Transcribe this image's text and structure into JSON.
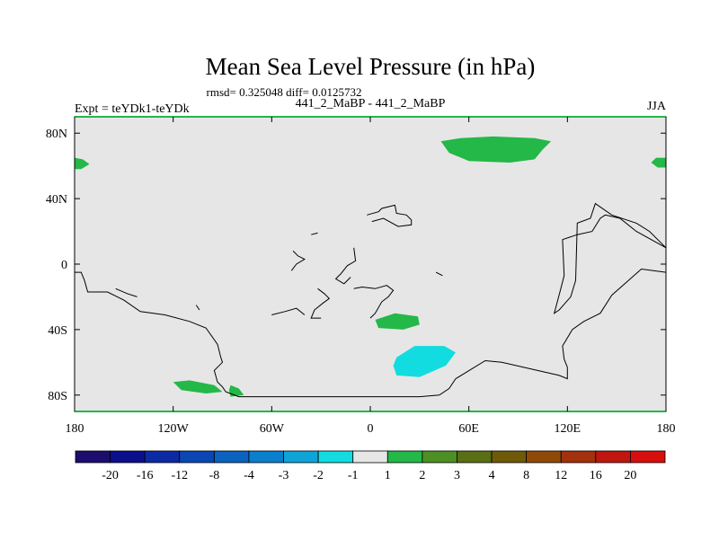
{
  "chart_data": {
    "type": "heatmap",
    "title": "Mean Sea Level Pressure (in hPa)",
    "stats": "rmsd= 0.325048 diff= 0.0125732",
    "left_label": "Expt = teYDk1-teYDk",
    "center_label": "441_2_MaBP - 441_2_MaBP",
    "right_label": "JJA",
    "x_ticks": [
      {
        "value": -180,
        "label": "180"
      },
      {
        "value": -120,
        "label": "120W"
      },
      {
        "value": -60,
        "label": "60W"
      },
      {
        "value": 0,
        "label": "0"
      },
      {
        "value": 60,
        "label": "60E"
      },
      {
        "value": 120,
        "label": "120E"
      },
      {
        "value": 180,
        "label": "180"
      }
    ],
    "y_ticks": [
      {
        "value": 80,
        "label": "80N"
      },
      {
        "value": 40,
        "label": "40N"
      },
      {
        "value": 0,
        "label": "0"
      },
      {
        "value": -40,
        "label": "40S"
      },
      {
        "value": -80,
        "label": "80S"
      }
    ],
    "xlim": [
      -180,
      180
    ],
    "ylim": [
      -90,
      90
    ],
    "colorbar": {
      "colors": [
        "#1c0d6e",
        "#0c0f8c",
        "#0c2aa3",
        "#0a47b5",
        "#0b62bf",
        "#0a7fcc",
        "#0ea4d8",
        "#12dce0",
        "#e6e6e6",
        "#23b848",
        "#4d8f25",
        "#5a6e16",
        "#6e5a08",
        "#8f4a0a",
        "#a3310c",
        "#bf1610",
        "#d80e0e"
      ],
      "labels": [
        "-20",
        "-16",
        "-12",
        "-8",
        "-4",
        "-3",
        "-2",
        "-1",
        "1",
        "2",
        "3",
        "4",
        "8",
        "12",
        "16",
        "20"
      ]
    },
    "anomalies": [
      {
        "name": "arctic-positive",
        "value_range": "1 to 2",
        "color": "#23b848",
        "lonlat": [
          [
            43,
            75
          ],
          [
            55,
            77
          ],
          [
            75,
            78
          ],
          [
            100,
            77
          ],
          [
            110,
            75
          ],
          [
            105,
            70
          ],
          [
            100,
            64
          ],
          [
            85,
            62
          ],
          [
            60,
            63
          ],
          [
            48,
            68
          ]
        ]
      },
      {
        "name": "date-line-positive-west",
        "value_range": "1 to 2",
        "color": "#23b848",
        "lonlat": [
          [
            -180,
            65
          ],
          [
            -175,
            64
          ],
          [
            -171,
            61
          ],
          [
            -176,
            58
          ],
          [
            -180,
            58
          ]
        ]
      },
      {
        "name": "date-line-positive-east",
        "value_range": "1 to 2",
        "color": "#23b848",
        "lonlat": [
          [
            180,
            65
          ],
          [
            174,
            65
          ],
          [
            171,
            62
          ],
          [
            175,
            59
          ],
          [
            180,
            59
          ]
        ]
      },
      {
        "name": "south-atlantic-positive",
        "value_range": "1 to 2",
        "color": "#23b848",
        "lonlat": [
          [
            3,
            -34
          ],
          [
            15,
            -30
          ],
          [
            29,
            -32
          ],
          [
            30,
            -37
          ],
          [
            20,
            -40
          ],
          [
            5,
            -39
          ]
        ]
      },
      {
        "name": "antarctic-positive-a",
        "value_range": "1 to 2",
        "color": "#23b848",
        "lonlat": [
          [
            -120,
            -72
          ],
          [
            -110,
            -71
          ],
          [
            -95,
            -74
          ],
          [
            -90,
            -78
          ],
          [
            -100,
            -79
          ],
          [
            -115,
            -77
          ]
        ]
      },
      {
        "name": "antarctic-positive-b",
        "value_range": "1 to 2",
        "color": "#23b848",
        "lonlat": [
          [
            -85,
            -74
          ],
          [
            -80,
            -76
          ],
          [
            -77,
            -80
          ],
          [
            -85,
            -81
          ],
          [
            -86,
            -77
          ]
        ]
      },
      {
        "name": "south-indian-negative",
        "value_range": "-2 to -1",
        "color": "#12dce0",
        "lonlat": [
          [
            16,
            -57
          ],
          [
            27,
            -50
          ],
          [
            45,
            -50
          ],
          [
            52,
            -54
          ],
          [
            46,
            -62
          ],
          [
            30,
            -69
          ],
          [
            16,
            -68
          ],
          [
            14,
            -62
          ]
        ]
      }
    ],
    "coastlines": [
      [
        [
          -180,
          -5
        ],
        [
          -176,
          -5
        ],
        [
          -174,
          -10
        ],
        [
          -172,
          -17
        ],
        [
          -160,
          -17
        ],
        [
          -150,
          -22
        ],
        [
          -140,
          -29
        ],
        [
          -125,
          -31
        ],
        [
          -110,
          -35
        ],
        [
          -100,
          -39
        ],
        [
          -93,
          -49
        ],
        [
          -91,
          -57
        ],
        [
          -90,
          -60
        ],
        [
          -95,
          -65
        ],
        [
          -93,
          -72
        ],
        [
          -90,
          -75
        ],
        [
          -88,
          -78
        ],
        [
          -80,
          -81
        ],
        [
          30,
          -81
        ],
        [
          42,
          -80
        ],
        [
          48,
          -76
        ],
        [
          52,
          -70
        ],
        [
          70,
          -59
        ],
        [
          80,
          -60
        ],
        [
          115,
          -68
        ],
        [
          120,
          -70
        ],
        [
          120,
          -63
        ],
        [
          118,
          -58
        ],
        [
          117,
          -50
        ],
        [
          123,
          -40
        ],
        [
          130,
          -35
        ],
        [
          140,
          -30
        ],
        [
          147,
          -19
        ],
        [
          165,
          -3
        ],
        [
          180,
          -5
        ]
      ],
      [
        [
          180,
          10
        ],
        [
          170,
          20
        ],
        [
          162,
          25
        ],
        [
          147,
          30
        ],
        [
          137,
          37
        ],
        [
          134,
          28
        ],
        [
          126,
          25
        ],
        [
          125,
          -10
        ],
        [
          122,
          -20
        ],
        [
          115,
          -28
        ],
        [
          112,
          -30
        ],
        [
          116,
          -15
        ],
        [
          118,
          -7
        ],
        [
          117,
          15
        ],
        [
          126,
          18
        ],
        [
          135,
          20
        ],
        [
          140,
          28
        ],
        [
          143,
          30
        ],
        [
          152,
          28
        ],
        [
          162,
          20
        ],
        [
          180,
          10
        ]
      ],
      [
        [
          -10,
          10
        ],
        [
          -9,
          2
        ],
        [
          -14,
          -1
        ],
        [
          -18,
          -6
        ],
        [
          -21,
          -9
        ],
        [
          -16,
          -12
        ],
        [
          -12,
          -8
        ]
      ],
      [
        [
          -32,
          -15
        ],
        [
          -28,
          -18
        ],
        [
          -25,
          -21
        ],
        [
          -29,
          -24
        ],
        [
          -34,
          -28
        ],
        [
          -36,
          -33
        ],
        [
          -30,
          -33
        ]
      ],
      [
        [
          -60,
          -31
        ],
        [
          -52,
          -29
        ],
        [
          -45,
          -27
        ],
        [
          -40,
          -31
        ]
      ],
      [
        [
          -10,
          -15
        ],
        [
          -5,
          -14
        ],
        [
          3,
          -15
        ],
        [
          10,
          -13
        ],
        [
          14,
          -16
        ],
        [
          11,
          -20
        ],
        [
          7,
          -23
        ],
        [
          3,
          -30
        ],
        [
          0,
          -33
        ]
      ],
      [
        [
          -2,
          30
        ],
        [
          5,
          32
        ],
        [
          7,
          34
        ],
        [
          15,
          36
        ],
        [
          16,
          31
        ],
        [
          22,
          30
        ],
        [
          25,
          27
        ],
        [
          25,
          24
        ],
        [
          17,
          23
        ],
        [
          8,
          28
        ],
        [
          1,
          26
        ]
      ],
      [
        [
          -47,
          8
        ],
        [
          -44,
          5
        ],
        [
          -40,
          3
        ],
        [
          -45,
          0
        ],
        [
          -48,
          -4
        ]
      ],
      [
        [
          -36,
          18
        ],
        [
          -32,
          19
        ]
      ],
      [
        [
          40,
          -5
        ],
        [
          44,
          -7
        ]
      ],
      [
        [
          -155,
          -15
        ],
        [
          -148,
          -18
        ],
        [
          -142,
          -20
        ]
      ],
      [
        [
          -106,
          -25
        ],
        [
          -104,
          -28
        ]
      ]
    ]
  }
}
